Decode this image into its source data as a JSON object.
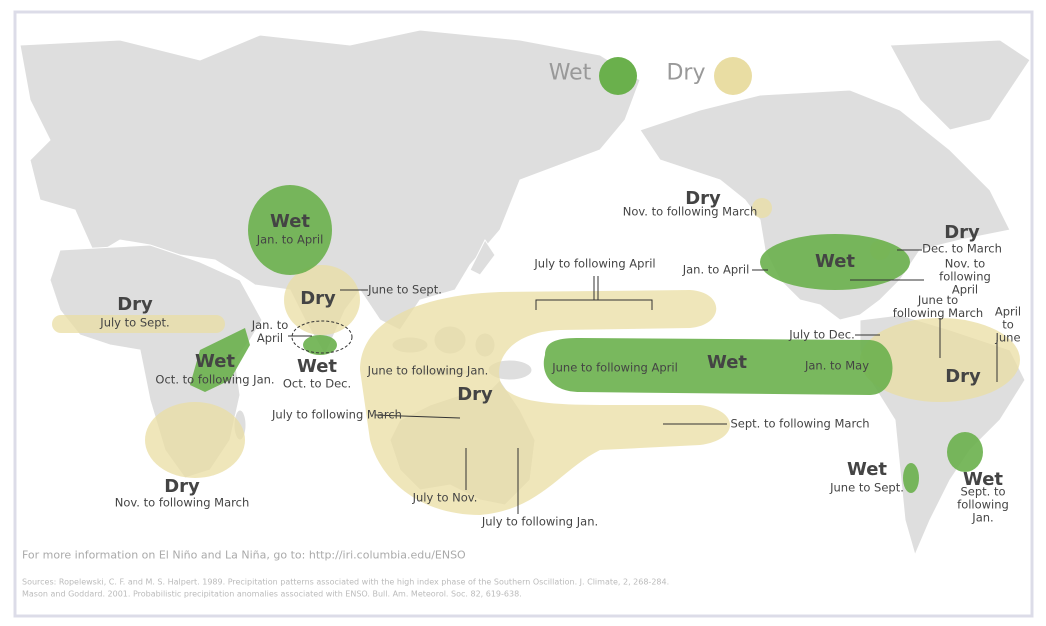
{
  "legend": {
    "wet": "Wet",
    "dry": "Dry"
  },
  "regions": [
    {
      "label": "Wet",
      "period": "Jan. to April"
    },
    {
      "label": "Dry",
      "period": "June to Sept."
    },
    {
      "label": "Wet",
      "period": "Oct. to Dec."
    },
    {
      "label": "Dry",
      "period": "July to Sept."
    },
    {
      "label": "Wet",
      "period": "Oct. to following Jan."
    },
    {
      "label": "Dry",
      "period": "Nov. to following March"
    },
    {
      "label": "Dry",
      "period": "Nov. to following March"
    },
    {
      "label": "Dry",
      "period": "Dec. to March"
    },
    {
      "label": "Wet",
      "period": "June to Sept."
    },
    {
      "label": "Wet",
      "period": "Sept. to\nfollowing Jan."
    },
    {
      "label": "Dry"
    },
    {
      "label": "Wet"
    },
    {
      "label": "Wet"
    },
    {
      "label": "Dry"
    }
  ],
  "callouts": [
    "Jan. to\nApril",
    "June to following Jan.",
    "July to following March",
    "July to Nov.",
    "July to following Jan.",
    "July to following April",
    "Sept. to following March",
    "June to following April",
    "Jan. to May",
    "Jan. to April",
    "Nov. to\nfollowing April",
    "June to\nfollowing March",
    "July to Dec.",
    "April to\nJune"
  ],
  "footer": {
    "more_info": "For more information on El Niño and La Niña, go to: http://iri.columbia.edu/ENSO",
    "sources_1": "Sources:  Ropelewski, C. F. and M. S. Halpert. 1989. Precipitation patterns associated with the high index phase of the Southern Oscillation. J. Climate, 2, 268-284.",
    "sources_2": "Mason and Goddard. 2001. Probabilistic precipitation anomalies associated with ENSO. Bull. Am. Meteorol. Soc. 82, 619-638."
  }
}
